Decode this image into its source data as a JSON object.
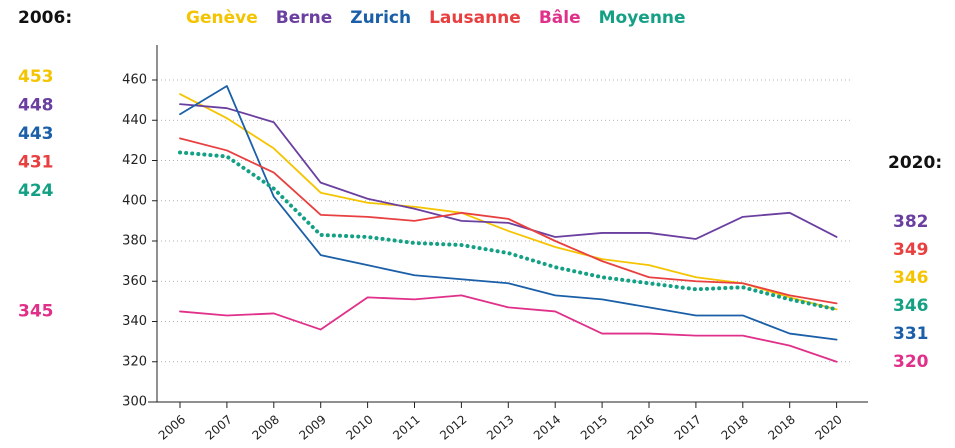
{
  "chart_data": {
    "type": "line",
    "start_label": "2006:",
    "end_label": "2020:",
    "categories": [
      "2006",
      "2007",
      "2008",
      "2009",
      "2010",
      "2011",
      "2012",
      "2013",
      "2014",
      "2015",
      "2016",
      "2017",
      "2018",
      "2018",
      "2020"
    ],
    "series": [
      {
        "name": "Genève",
        "color": "#f5c400",
        "values": [
          453,
          441,
          426,
          404,
          399,
          397,
          394,
          385,
          377,
          371,
          368,
          362,
          359,
          352,
          346
        ]
      },
      {
        "name": "Berne",
        "color": "#6b3fa0",
        "values": [
          448,
          446,
          439,
          409,
          401,
          396,
          390,
          389,
          382,
          384,
          384,
          381,
          392,
          394,
          382
        ]
      },
      {
        "name": "Zurich",
        "color": "#1a5fa8",
        "values": [
          443,
          457,
          402,
          373,
          368,
          363,
          361,
          359,
          353,
          351,
          347,
          343,
          343,
          334,
          331
        ]
      },
      {
        "name": "Lausanne",
        "color": "#e84040",
        "values": [
          431,
          425,
          414,
          393,
          392,
          390,
          394,
          391,
          380,
          370,
          362,
          360,
          359,
          353,
          349
        ]
      },
      {
        "name": "Bâle",
        "color": "#e0308a",
        "values": [
          345,
          343,
          344,
          336,
          352,
          351,
          353,
          347,
          345,
          334,
          334,
          333,
          333,
          328,
          320
        ]
      },
      {
        "name": "Moyenne",
        "color": "#14a085",
        "dotted": true,
        "values": [
          424,
          422,
          406,
          383,
          382,
          379,
          378,
          374,
          367,
          362,
          359,
          356,
          357,
          351,
          346
        ]
      }
    ],
    "ylim": [
      300,
      460
    ],
    "yticks": [
      300,
      320,
      340,
      360,
      380,
      400,
      420,
      440,
      460
    ],
    "grid": true
  }
}
